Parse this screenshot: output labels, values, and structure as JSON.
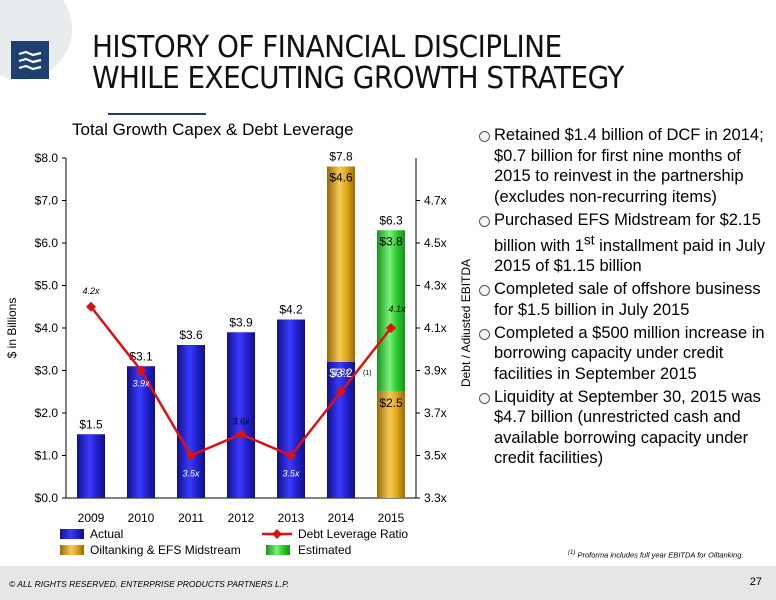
{
  "title": {
    "line1": "HISTORY OF FINANCIAL DISCIPLINE",
    "line2": "WHILE EXECUTING GROWTH STRATEGY"
  },
  "chart_data": {
    "type": "bar",
    "title": "Total Growth Capex & Debt Leverage",
    "categories": [
      "2009",
      "2010",
      "2011",
      "2012",
      "2013",
      "2014",
      "2015"
    ],
    "ylabel": "$ in Billions",
    "y2label": "Debt / Adjusted EBITDA",
    "ylim": [
      0,
      8
    ],
    "y_ticks": [
      "$0.0",
      "$1.0",
      "$2.0",
      "$3.0",
      "$4.0",
      "$5.0",
      "$6.0",
      "$7.0",
      "$8.0"
    ],
    "y2lim": [
      3.3,
      4.9
    ],
    "y2_ticks": [
      "3.3x",
      "3.5x",
      "3.7x",
      "3.9x",
      "4.1x",
      "4.3x",
      "4.5x",
      "4.7x"
    ],
    "series": [
      {
        "name": "Actual",
        "color": "#2222cc",
        "values": [
          1.5,
          3.1,
          3.6,
          3.9,
          4.2,
          3.2,
          null
        ],
        "labels": [
          "",
          "",
          "",
          "",
          "",
          "$3.2",
          ""
        ]
      },
      {
        "name": "Oiltanking & EFS Midstream",
        "color": "#e0a81c",
        "values": [
          null,
          null,
          null,
          null,
          null,
          4.6,
          2.5
        ],
        "labels": [
          "",
          "",
          "",
          "",
          "",
          "$4.6",
          "$2.5"
        ]
      },
      {
        "name": "Estimated",
        "color": "#2ecc2e",
        "values": [
          null,
          null,
          null,
          null,
          null,
          null,
          3.8
        ],
        "labels": [
          "",
          "",
          "",
          "",
          "",
          "",
          "$3.8"
        ]
      }
    ],
    "totals": [
      1.5,
      3.1,
      3.6,
      3.9,
      4.2,
      7.8,
      6.3
    ],
    "total_labels": [
      "$1.5",
      "$3.1",
      "$3.6",
      "$3.9",
      "$4.2",
      "$7.8",
      "$6.3"
    ],
    "line": {
      "name": "Debt Leverage Ratio",
      "color": "#e01010",
      "values": [
        4.2,
        3.9,
        3.5,
        3.6,
        3.5,
        3.8,
        4.1
      ],
      "labels": [
        "4.2x",
        "3.9x",
        "3.5x",
        "3.6x",
        "3.5x",
        "3.8x",
        "4.1x"
      ],
      "superscript_2014": "(1)"
    },
    "grid": false,
    "legend_position": "bottom"
  },
  "bullets": [
    "Retained $1.4 billion of DCF in 2014; $0.7 billion for first nine months of 2015 to reinvest in the partnership (excludes non-recurring items)",
    "Purchased EFS Midstream for $2.15 billion with 1st installment paid in July 2015 of $1.15 billion",
    "Completed sale of offshore business for $1.5 billion in July 2015",
    "Completed a $500 million increase in borrowing capacity under credit facilities in September 2015",
    "Liquidity at September 30, 2015 was $4.7 billion (unrestricted cash and available borrowing capacity under credit facilities)"
  ],
  "footnote": {
    "mark": "(1)",
    "text": "Proforma includes full year EBITDA for Oiltanking."
  },
  "footer": {
    "copyright": "© ALL RIGHTS RESERVED. ENTERPRISE PRODUCTS PARTNERS L.P.",
    "page": "27"
  },
  "colors": {
    "brand": "#1f3f73",
    "actual": "#2222cc",
    "oiltanking": "#e0a81c",
    "estimated": "#2ecc2e",
    "line": "#e01010"
  }
}
